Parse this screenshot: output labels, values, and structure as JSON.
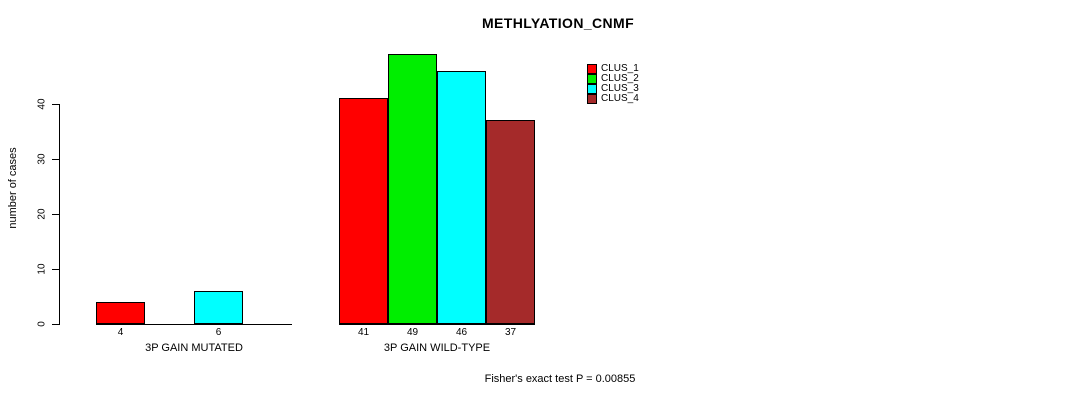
{
  "chart_data": {
    "type": "bar",
    "title": "METHLYATION_CNMF",
    "ylabel": "number of cases",
    "ylim": [
      0,
      40
    ],
    "yticks": [
      0,
      10,
      20,
      30,
      40
    ],
    "grid": false,
    "legend_position": "top-right",
    "categories": [
      "3P GAIN MUTATED",
      "3P GAIN WILD-TYPE"
    ],
    "series": [
      {
        "name": "CLUS_1",
        "color": "#FF0000",
        "values": [
          4,
          41
        ]
      },
      {
        "name": "CLUS_2",
        "color": "#00EE00",
        "values": [
          0,
          49
        ]
      },
      {
        "name": "CLUS_3",
        "color": "#00FFFF",
        "values": [
          6,
          46
        ]
      },
      {
        "name": "CLUS_4",
        "color": "#A52A2A",
        "values": [
          0,
          37
        ]
      }
    ],
    "annotation": "Fisher's exact test P = 0.00855"
  }
}
